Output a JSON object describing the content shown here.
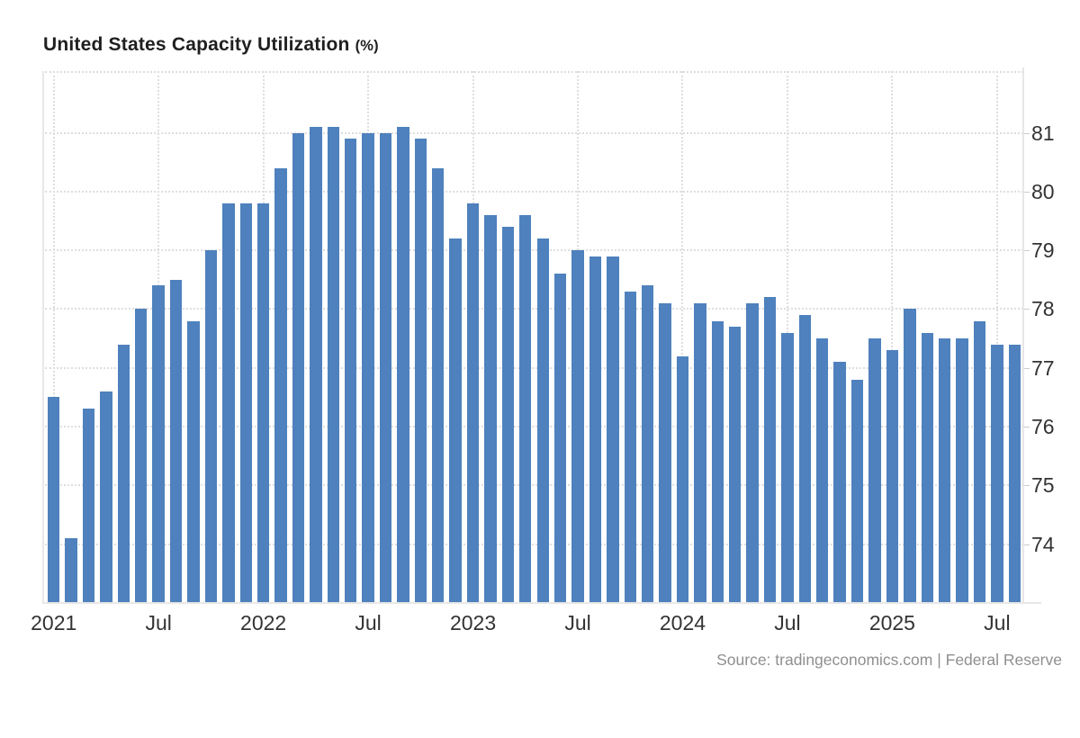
{
  "title": "United States Capacity Utilization",
  "title_suffix": "(%)",
  "source_text": "Source: tradingeconomics.com | Federal Reserve",
  "colors": {
    "bar": "#4e81bd",
    "grid": "#dedede",
    "axis": "#e7e7e7",
    "tick": "#cccccc",
    "axis_label": "#333333",
    "title": "#1f1f1f",
    "source": "#8f8f8f",
    "background": "#ffffff"
  },
  "chart_data": {
    "type": "bar",
    "title": "United States Capacity Utilization (%)",
    "ylabel": "",
    "xlabel": "",
    "unit": "%",
    "grid": true,
    "legend": "none",
    "x": [
      "2021-01",
      "2021-02",
      "2021-03",
      "2021-04",
      "2021-05",
      "2021-06",
      "2021-07",
      "2021-08",
      "2021-09",
      "2021-10",
      "2021-11",
      "2021-12",
      "2022-01",
      "2022-02",
      "2022-03",
      "2022-04",
      "2022-05",
      "2022-06",
      "2022-07",
      "2022-08",
      "2022-09",
      "2022-10",
      "2022-11",
      "2022-12",
      "2023-01",
      "2023-02",
      "2023-03",
      "2023-04",
      "2023-05",
      "2023-06",
      "2023-07",
      "2023-08",
      "2023-09",
      "2023-10",
      "2023-11",
      "2023-12",
      "2024-01",
      "2024-02",
      "2024-03",
      "2024-04",
      "2024-05",
      "2024-06",
      "2024-07",
      "2024-08",
      "2024-09",
      "2024-10",
      "2024-11",
      "2024-12",
      "2025-01",
      "2025-02",
      "2025-03",
      "2025-04",
      "2025-05",
      "2025-06",
      "2025-07",
      "2025-08"
    ],
    "values": [
      76.5,
      74.1,
      76.3,
      76.6,
      77.4,
      78.0,
      78.4,
      78.5,
      77.8,
      79.0,
      79.8,
      79.8,
      79.8,
      80.4,
      81.0,
      81.1,
      81.1,
      80.9,
      81.0,
      81.0,
      81.1,
      80.9,
      80.4,
      79.2,
      79.8,
      79.6,
      79.4,
      79.6,
      79.2,
      78.6,
      79.0,
      78.9,
      78.9,
      78.3,
      78.4,
      78.1,
      77.2,
      78.1,
      77.8,
      77.7,
      78.1,
      78.2,
      77.6,
      77.9,
      77.5,
      77.1,
      76.8,
      77.5,
      77.3,
      78.0,
      77.6,
      77.5,
      77.5,
      77.8,
      77.4,
      77.4
    ],
    "xtick_labels": [
      "2021",
      "Jul",
      "2022",
      "Jul",
      "2023",
      "Jul",
      "2024",
      "Jul",
      "2025",
      "Jul"
    ],
    "xtick_indices": [
      0,
      6,
      12,
      18,
      24,
      30,
      36,
      42,
      48,
      54
    ],
    "yticks": [
      74,
      75,
      76,
      77,
      78,
      79,
      80,
      81
    ],
    "ylim": [
      73.0,
      82.05
    ]
  }
}
